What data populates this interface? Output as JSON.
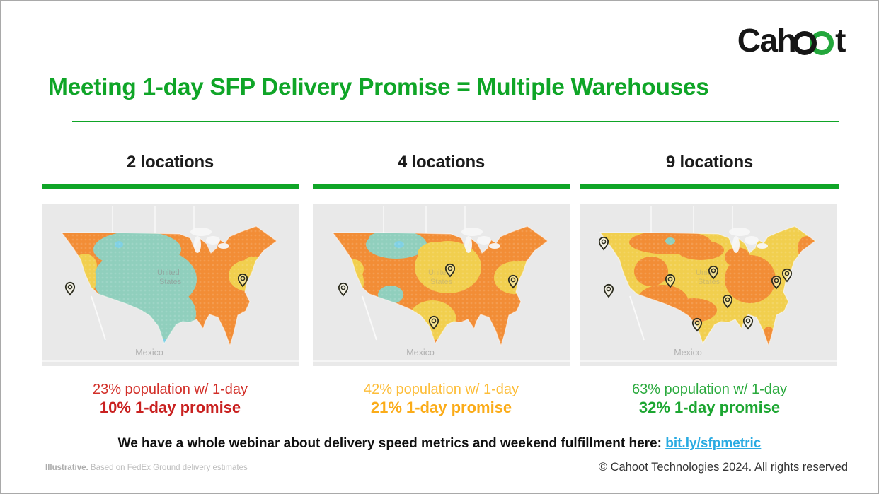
{
  "logo": {
    "text_pre": "Cah",
    "text_post": "t",
    "black": "#161616",
    "green": "#23a73c"
  },
  "title": {
    "text": "Meeting 1-day SFP Delivery Promise = Multiple Warehouses"
  },
  "colors": {
    "green": "#0fa527",
    "link": "#29abe2",
    "map_bg": "#e9e9e9",
    "map_orange": "#f28d36",
    "map_yellow": "#f1cf4e",
    "map_teal": "#90cfbd",
    "map_water": "#7fd0e4"
  },
  "columns": [
    {
      "header": "2 locations",
      "stat_line1": "23% population w/ 1-day",
      "stat_line2": "10% 1-day promise",
      "stat_color_light": "#d22f28",
      "stat_color": "#c92120",
      "locations": 2
    },
    {
      "header": "4 locations",
      "stat_line1": "42% population w/ 1-day",
      "stat_line2": "21% 1-day promise",
      "stat_color_light": "#fdbd38",
      "stat_color": "#fbac19",
      "locations": 4
    },
    {
      "header": "9 locations",
      "stat_line1": "63% population w/ 1-day",
      "stat_line2": "32% 1-day promise",
      "stat_color_light": "#2baa3e",
      "stat_color": "#1ca631",
      "locations": 9
    }
  ],
  "map_labels": {
    "country_line1": "United",
    "country_line2": "States",
    "mexico": "Mexico"
  },
  "webinar": {
    "text": "We have a whole webinar about delivery speed metrics and weekend fulfillment here: ",
    "link": "bit.ly/sfpmetric"
  },
  "footer": {
    "left_bold": "Illustrative.",
    "left_rest": " Based on FedEx Ground delivery estimates",
    "right": "© Cahoot Technologies 2024. All rights reserved"
  }
}
